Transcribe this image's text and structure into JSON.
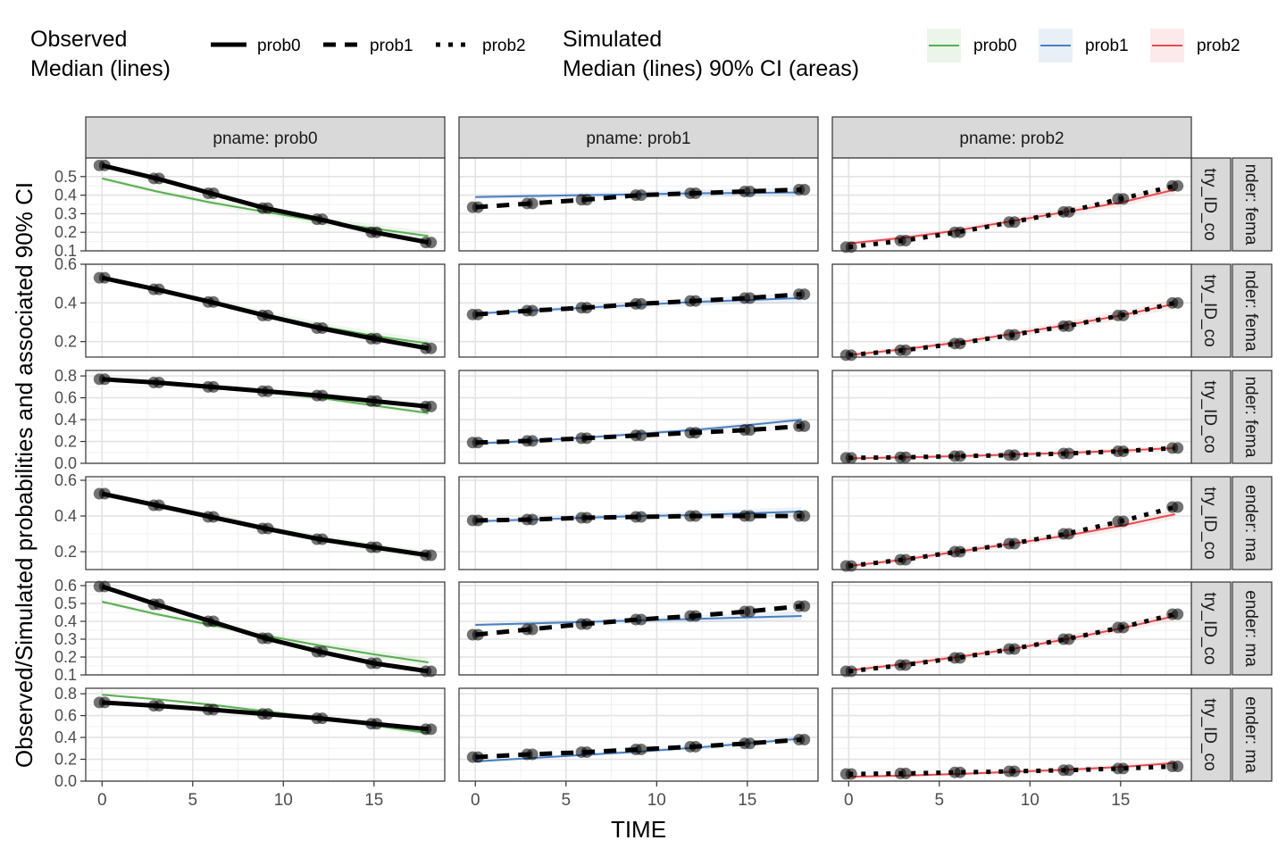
{
  "legend": {
    "observed_title_1": "Observed",
    "observed_title_2": "Median (lines)",
    "observed_items": [
      {
        "label": "prob0",
        "dash": "solid"
      },
      {
        "label": "prob1",
        "dash": "dashed"
      },
      {
        "label": "prob2",
        "dash": "dotted"
      }
    ],
    "simulated_title_1": "Simulated",
    "simulated_title_2": "Median (lines) 90% CI (areas)",
    "simulated_items": [
      {
        "label": "prob0",
        "color": "#5aae52"
      },
      {
        "label": "prob1",
        "color": "#4a7fbf"
      },
      {
        "label": "prob2",
        "color": "#e64c4f"
      }
    ]
  },
  "axes": {
    "xlabel": "TIME",
    "ylabel": "Observed/Simulated probabilities and associated 90% CI",
    "xticks": [
      "0",
      "5",
      "10",
      "15"
    ],
    "xlim": [
      -0.9,
      18.9
    ]
  },
  "chart_data": {
    "type": "line",
    "facet_columns": [
      "pname: prob0",
      "pname: prob1",
      "pname: prob2"
    ],
    "x": [
      0,
      3,
      6,
      9,
      12,
      15,
      18
    ],
    "rows": [
      {
        "strip_1": "try_ID_co",
        "strip_2": "nder: fema",
        "ylim": [
          0.1,
          0.6
        ],
        "yticks": [
          "0.1",
          "0.2",
          "0.3",
          "0.4",
          "0.5"
        ],
        "observed": [
          [
            0.56,
            0.49,
            0.41,
            0.33,
            0.27,
            0.2,
            0.145
          ],
          [
            0.335,
            0.355,
            0.375,
            0.4,
            0.41,
            0.42,
            0.43
          ],
          [
            0.12,
            0.155,
            0.2,
            0.255,
            0.31,
            0.38,
            0.45
          ]
        ],
        "simulated": [
          [
            0.49,
            0.42,
            0.36,
            0.31,
            0.26,
            0.22,
            0.18
          ],
          [
            0.39,
            0.395,
            0.4,
            0.405,
            0.41,
            0.412,
            0.415
          ],
          [
            0.14,
            0.17,
            0.21,
            0.26,
            0.31,
            0.36,
            0.43
          ]
        ]
      },
      {
        "strip_1": "try_ID_co",
        "strip_2": "nder: fema",
        "ylim": [
          0.12,
          0.6
        ],
        "yticks": [
          "0.2",
          "0.4",
          "0.6"
        ],
        "observed": [
          [
            0.53,
            0.47,
            0.405,
            0.335,
            0.27,
            0.215,
            0.165
          ],
          [
            0.34,
            0.36,
            0.375,
            0.395,
            0.41,
            0.425,
            0.445
          ],
          [
            0.13,
            0.155,
            0.19,
            0.235,
            0.28,
            0.335,
            0.4
          ]
        ],
        "simulated": [
          [
            0.53,
            0.47,
            0.41,
            0.34,
            0.28,
            0.23,
            0.19
          ],
          [
            0.345,
            0.36,
            0.375,
            0.39,
            0.405,
            0.415,
            0.425
          ],
          [
            0.13,
            0.16,
            0.195,
            0.24,
            0.285,
            0.335,
            0.395
          ]
        ]
      },
      {
        "strip_1": "try_ID_co",
        "strip_2": "nder: fema",
        "ylim": [
          0.0,
          0.85
        ],
        "yticks": [
          "0.0",
          "0.2",
          "0.4",
          "0.6",
          "0.8"
        ],
        "observed": [
          [
            0.77,
            0.74,
            0.7,
            0.66,
            0.62,
            0.57,
            0.52
          ],
          [
            0.19,
            0.205,
            0.23,
            0.255,
            0.28,
            0.305,
            0.34
          ],
          [
            0.05,
            0.055,
            0.065,
            0.075,
            0.09,
            0.11,
            0.14
          ]
        ],
        "simulated": [
          [
            0.77,
            0.74,
            0.7,
            0.65,
            0.6,
            0.53,
            0.46
          ],
          [
            0.18,
            0.205,
            0.235,
            0.27,
            0.305,
            0.35,
            0.4
          ],
          [
            0.045,
            0.055,
            0.065,
            0.08,
            0.095,
            0.115,
            0.14
          ]
        ]
      },
      {
        "strip_1": "try_ID_co",
        "strip_2": "ender: ma",
        "ylim": [
          0.1,
          0.62
        ],
        "yticks": [
          "0.2",
          "0.4",
          "0.6"
        ],
        "observed": [
          [
            0.525,
            0.46,
            0.395,
            0.33,
            0.27,
            0.225,
            0.18
          ],
          [
            0.375,
            0.38,
            0.39,
            0.395,
            0.4,
            0.4,
            0.4
          ],
          [
            0.12,
            0.155,
            0.2,
            0.245,
            0.3,
            0.37,
            0.45
          ]
        ],
        "simulated": [
          [
            0.52,
            0.46,
            0.4,
            0.335,
            0.275,
            0.225,
            0.18
          ],
          [
            0.37,
            0.38,
            0.39,
            0.4,
            0.405,
            0.415,
            0.425
          ],
          [
            0.12,
            0.155,
            0.2,
            0.245,
            0.29,
            0.345,
            0.41
          ]
        ]
      },
      {
        "strip_1": "try_ID_co",
        "strip_2": "ender: ma",
        "ylim": [
          0.1,
          0.62
        ],
        "yticks": [
          "0.1",
          "0.2",
          "0.3",
          "0.4",
          "0.5",
          "0.6"
        ],
        "observed": [
          [
            0.595,
            0.495,
            0.4,
            0.305,
            0.23,
            0.165,
            0.12
          ],
          [
            0.325,
            0.355,
            0.385,
            0.41,
            0.43,
            0.455,
            0.485
          ],
          [
            0.12,
            0.155,
            0.195,
            0.245,
            0.3,
            0.365,
            0.44
          ]
        ],
        "simulated": [
          [
            0.51,
            0.44,
            0.38,
            0.32,
            0.265,
            0.215,
            0.17
          ],
          [
            0.38,
            0.388,
            0.396,
            0.405,
            0.413,
            0.422,
            0.43
          ],
          [
            0.125,
            0.16,
            0.2,
            0.245,
            0.3,
            0.36,
            0.43
          ]
        ]
      },
      {
        "strip_1": "try_ID_co",
        "strip_2": "ender: ma",
        "ylim": [
          0.0,
          0.85
        ],
        "yticks": [
          "0.0",
          "0.2",
          "0.4",
          "0.6",
          "0.8"
        ],
        "observed": [
          [
            0.72,
            0.69,
            0.655,
            0.615,
            0.575,
            0.525,
            0.475
          ],
          [
            0.22,
            0.245,
            0.265,
            0.29,
            0.315,
            0.345,
            0.38
          ],
          [
            0.065,
            0.07,
            0.08,
            0.09,
            0.1,
            0.115,
            0.135
          ]
        ],
        "simulated": [
          [
            0.79,
            0.75,
            0.7,
            0.64,
            0.58,
            0.51,
            0.44
          ],
          [
            0.18,
            0.21,
            0.24,
            0.27,
            0.305,
            0.345,
            0.39
          ],
          [
            0.04,
            0.05,
            0.065,
            0.085,
            0.105,
            0.13,
            0.165
          ]
        ]
      }
    ]
  }
}
